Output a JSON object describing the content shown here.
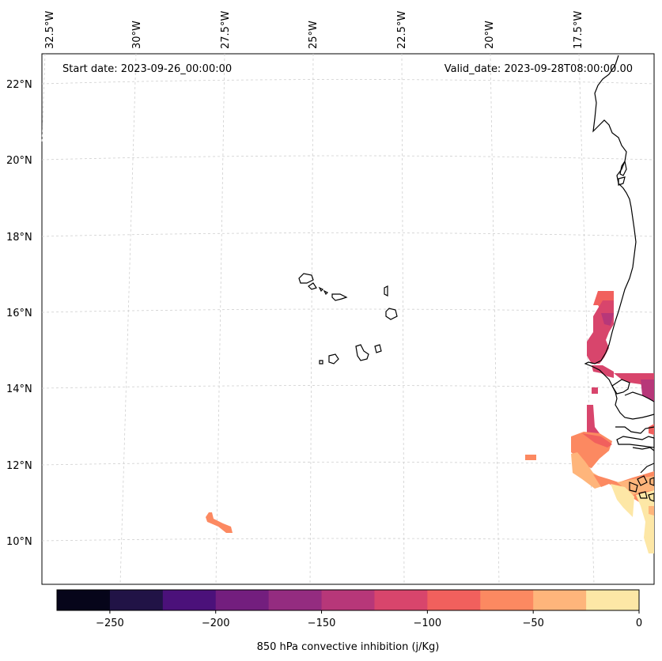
{
  "map": {
    "start_date": "Start date: 2023-09-26_00:00:00",
    "valid_date": "Valid_date: 2023-09-28T08:00:00.00",
    "lon_labels": [
      "32.5°W",
      "30°W",
      "27.5°W",
      "25°W",
      "22.5°W",
      "20°W",
      "17.5°W"
    ],
    "lat_labels": [
      "22°N",
      "20°N",
      "18°N",
      "16°N",
      "14°N",
      "12°N",
      "10°N"
    ]
  },
  "colorbar": {
    "label": "850 hPa convective inhibition (j/Kg)",
    "tick_labels": [
      "−250",
      "−200",
      "−150",
      "−100",
      "−50",
      "0"
    ],
    "colors": [
      "#06051a",
      "#211346",
      "#4b117a",
      "#731e7e",
      "#942c80",
      "#b73779",
      "#d8456c",
      "#f1605d",
      "#fc8961",
      "#feb57b",
      "#fde7a6"
    ]
  }
}
